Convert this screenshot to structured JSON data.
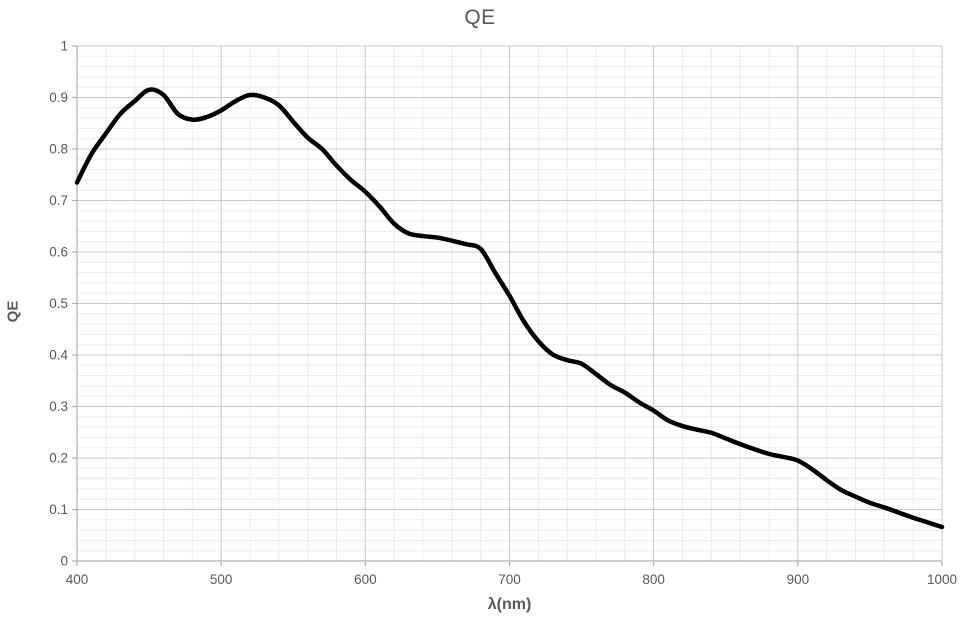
{
  "colors": {
    "curve": "#000000",
    "grid_major": "#c8c8c8",
    "grid_minor": "#ececec",
    "axis_line": "#b0b0b0",
    "text": "#595959",
    "background": "#ffffff"
  },
  "chart_data": {
    "type": "line",
    "title": "QE",
    "xlabel": "λ(nm)",
    "ylabel": "QE",
    "xlim": [
      400,
      1000
    ],
    "ylim": [
      0,
      1
    ],
    "x_tick_labels": [
      "400",
      "500",
      "600",
      "700",
      "800",
      "900",
      "1000"
    ],
    "x_major_ticks": [
      400,
      500,
      600,
      700,
      800,
      900,
      1000
    ],
    "y_tick_labels": [
      "0",
      "0.1",
      "0.2",
      "0.3",
      "0.4",
      "0.5",
      "0.6",
      "0.7",
      "0.8",
      "0.9",
      "1"
    ],
    "y_major_ticks": [
      0,
      0.1,
      0.2,
      0.3,
      0.4,
      0.5,
      0.6,
      0.7,
      0.8,
      0.9,
      1
    ],
    "x_minor_step": 20,
    "y_minor_step": 0.02,
    "grid": "major+minor",
    "legend": "none",
    "series": [
      {
        "name": "QE",
        "x": [
          400,
          410,
          420,
          430,
          440,
          450,
          460,
          470,
          480,
          490,
          500,
          510,
          520,
          530,
          540,
          550,
          560,
          570,
          580,
          590,
          600,
          610,
          620,
          630,
          640,
          650,
          660,
          670,
          680,
          690,
          700,
          710,
          720,
          730,
          740,
          750,
          760,
          770,
          780,
          790,
          800,
          810,
          820,
          830,
          840,
          850,
          860,
          870,
          880,
          890,
          900,
          910,
          920,
          930,
          940,
          950,
          960,
          970,
          980,
          990,
          1000
        ],
        "y": [
          0.735,
          0.79,
          0.83,
          0.868,
          0.893,
          0.915,
          0.905,
          0.868,
          0.857,
          0.862,
          0.875,
          0.893,
          0.905,
          0.9,
          0.885,
          0.853,
          0.822,
          0.8,
          0.768,
          0.74,
          0.717,
          0.688,
          0.655,
          0.636,
          0.631,
          0.628,
          0.622,
          0.615,
          0.606,
          0.56,
          0.515,
          0.465,
          0.427,
          0.401,
          0.39,
          0.383,
          0.363,
          0.342,
          0.327,
          0.308,
          0.292,
          0.273,
          0.262,
          0.255,
          0.249,
          0.238,
          0.227,
          0.217,
          0.208,
          0.202,
          0.195,
          0.178,
          0.157,
          0.138,
          0.125,
          0.113,
          0.104,
          0.094,
          0.084,
          0.075,
          0.066
        ]
      }
    ]
  }
}
